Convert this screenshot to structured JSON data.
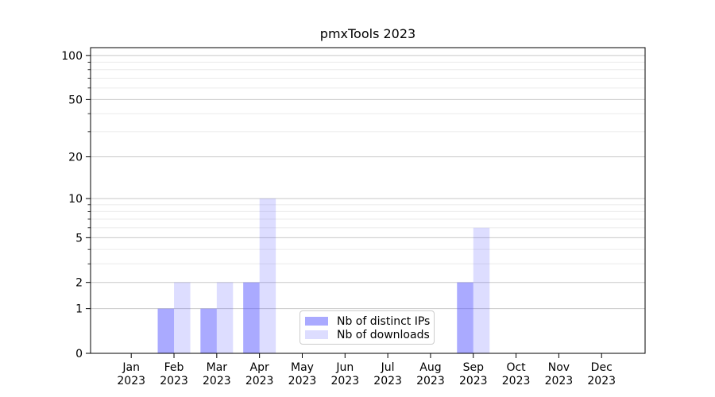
{
  "chart_data": {
    "type": "bar",
    "title": "pmxTools 2023",
    "categories": [
      "Jan",
      "Feb",
      "Mar",
      "Apr",
      "May",
      "Jun",
      "Jul",
      "Aug",
      "Sep",
      "Oct",
      "Nov",
      "Dec"
    ],
    "year_label": "2023",
    "series": [
      {
        "name": "Nb of distinct IPs",
        "color": "rgba(85,85,255,0.5)",
        "values": [
          0,
          1,
          1,
          2,
          0,
          0,
          0,
          0,
          2,
          0,
          0,
          0
        ]
      },
      {
        "name": "Nb of downloads",
        "color": "rgba(85,85,255,0.2)",
        "values": [
          0,
          2,
          2,
          10,
          0,
          0,
          0,
          0,
          6,
          0,
          0,
          0
        ]
      }
    ],
    "yscale": "log10(value+1)",
    "ylim": [
      0,
      113
    ],
    "yticks": [
      0,
      1,
      2,
      5,
      10,
      20,
      50,
      100
    ],
    "yticks_minor": [
      3,
      4,
      6,
      7,
      8,
      9,
      30,
      40,
      60,
      70,
      80,
      90
    ],
    "grid": true,
    "legend_position": "lower center"
  },
  "colors": {
    "background": "#ffffff",
    "axis": "#000000",
    "grid_major": "#c8c8c8",
    "grid_minor": "#ebebeb",
    "legend_border": "#cccccc",
    "text": "#000000"
  }
}
